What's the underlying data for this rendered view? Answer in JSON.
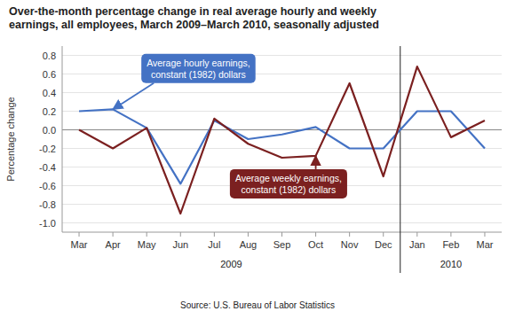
{
  "chart_data": {
    "type": "line",
    "title": "Over-the-month percentage change in real average hourly and weekly\nearnings, all employees, March 2009–March 2010, seasonally adjusted",
    "ylabel": "Percentage change",
    "source": "Source:  U.S. Bureau of Labor Statistics",
    "categories": [
      "Mar",
      "Apr",
      "May",
      "Jun",
      "Jul",
      "Aug",
      "Sep",
      "Oct",
      "Nov",
      "Dec",
      "Jan",
      "Feb",
      "Mar"
    ],
    "x_groups": [
      {
        "label": "2009",
        "count": 10
      },
      {
        "label": "2010",
        "count": 3
      }
    ],
    "series": [
      {
        "name": "Average hourly earnings,\nconstant (1982) dollars",
        "color": "#4472C4",
        "values": [
          0.2,
          0.22,
          0.02,
          -0.58,
          0.1,
          -0.1,
          -0.05,
          0.03,
          -0.2,
          -0.2,
          0.2,
          0.2,
          -0.2
        ]
      },
      {
        "name": "Average weekly earnings,\nconstant (1982) dollars",
        "color": "#7B2020",
        "values": [
          0.0,
          -0.2,
          0.02,
          -0.9,
          0.12,
          -0.15,
          -0.3,
          -0.28,
          0.5,
          -0.5,
          0.68,
          -0.08,
          0.1
        ]
      }
    ],
    "ylim": [
      -1.1,
      0.9
    ],
    "yticks": [
      {
        "value": -1.0,
        "label": "-1.0"
      },
      -0.8,
      -0.6,
      -0.4,
      -0.2,
      {
        "value": 0.0,
        "label": "0.0"
      },
      0.2,
      0.4,
      0.6,
      0.8
    ],
    "grid": true
  }
}
